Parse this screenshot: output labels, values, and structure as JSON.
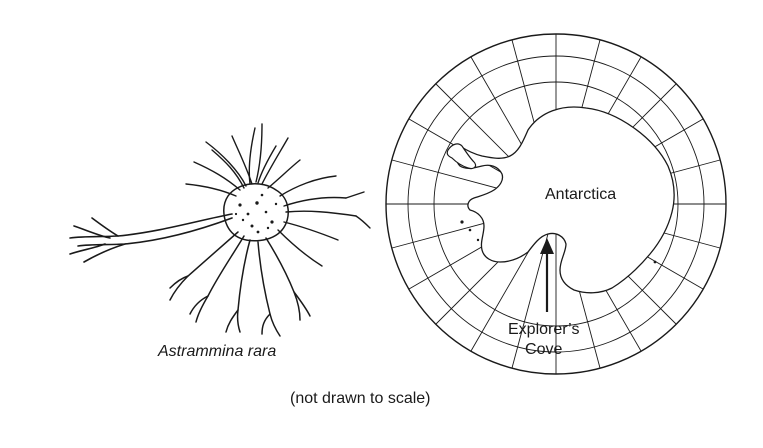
{
  "organism": {
    "caption": "Astrammina rara"
  },
  "map": {
    "continent_label": "Antarctica",
    "site_label_line1": "Explorer’s",
    "site_label_line2": "Cove"
  },
  "footnote": "(not drawn to scale)"
}
